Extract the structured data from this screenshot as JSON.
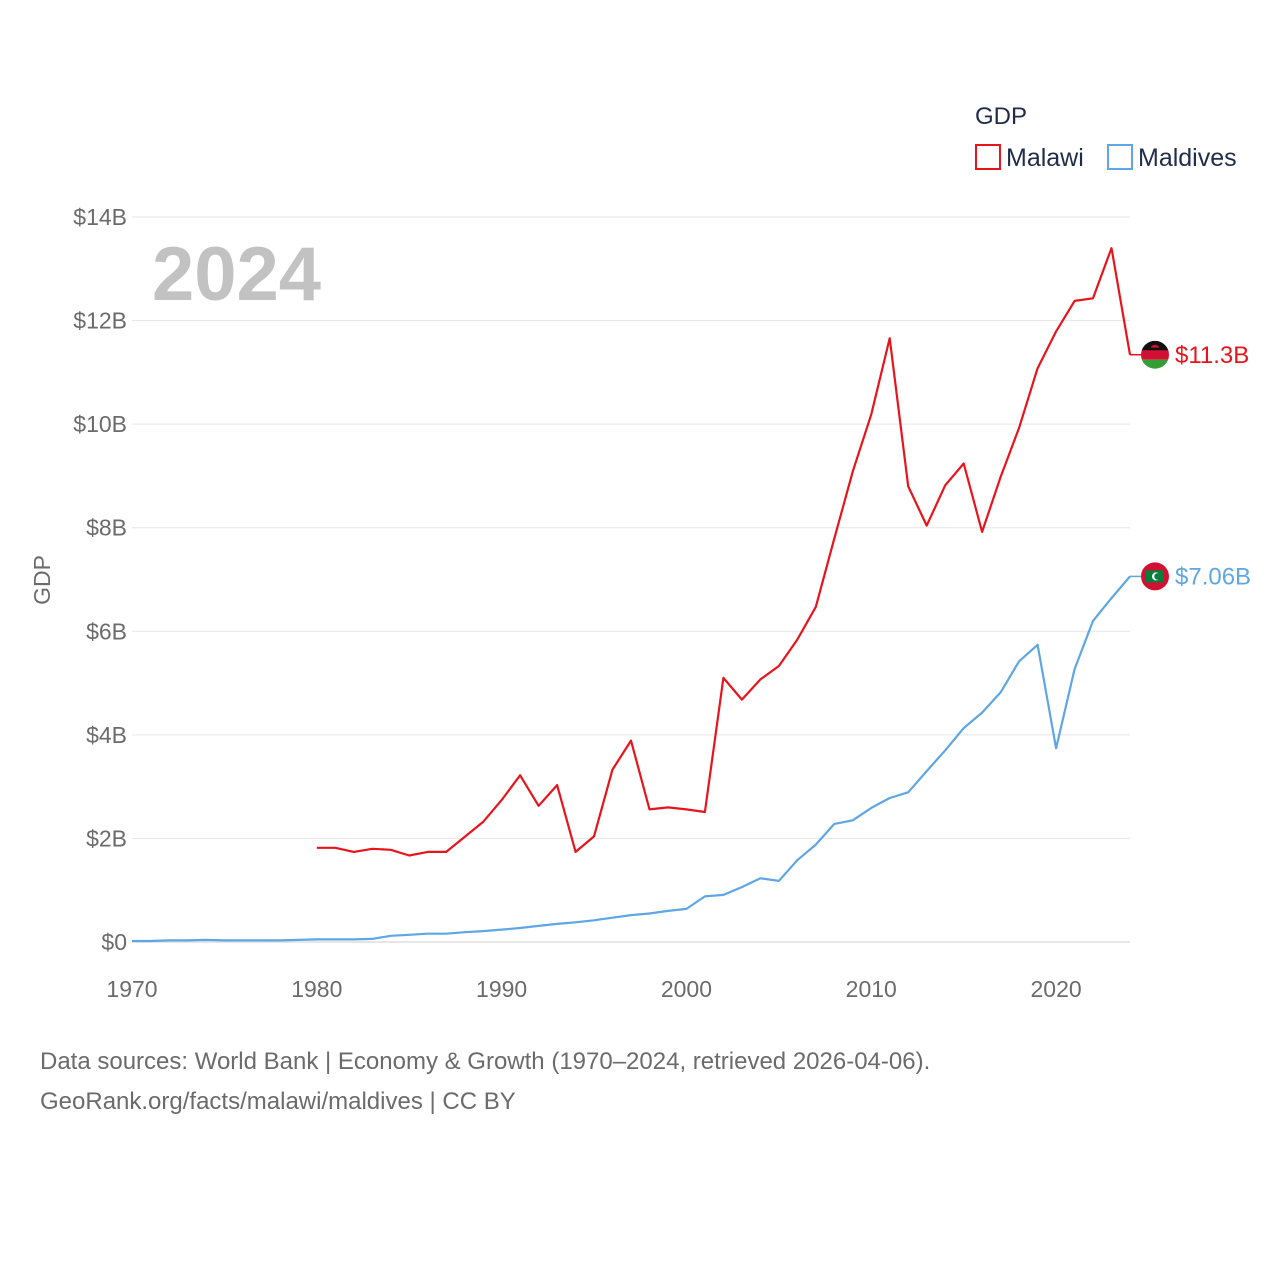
{
  "chart_data": {
    "type": "line",
    "title": "",
    "year_label": "2024",
    "xlabel": "",
    "ylabel": "GDP",
    "xlim": [
      1970,
      2024
    ],
    "ylim": [
      0,
      14000000000
    ],
    "x_ticks": [
      "1970",
      "1980",
      "1990",
      "2000",
      "2010",
      "2020"
    ],
    "y_ticks": [
      "$0",
      "$2B",
      "$4B",
      "$6B",
      "$8B",
      "$10B",
      "$12B",
      "$14B"
    ],
    "grid": true,
    "legend": {
      "title": "GDP",
      "position": "top-right",
      "entries": [
        "Malawi",
        "Maldives"
      ]
    },
    "series": [
      {
        "name": "Malawi",
        "color": "#e8141c",
        "end_label": "$11.3B",
        "flag": "malawi-flag-icon",
        "x": [
          1980,
          1981,
          1982,
          1983,
          1984,
          1985,
          1986,
          1987,
          1988,
          1989,
          1990,
          1991,
          1992,
          1993,
          1994,
          1995,
          1996,
          1997,
          1998,
          1999,
          2000,
          2001,
          2002,
          2003,
          2004,
          2005,
          2006,
          2007,
          2008,
          2009,
          2010,
          2011,
          2012,
          2013,
          2014,
          2015,
          2016,
          2017,
          2018,
          2019,
          2020,
          2021,
          2022,
          2023,
          2024
        ],
        "values": [
          1.82,
          1.82,
          1.74,
          1.8,
          1.78,
          1.67,
          1.74,
          1.74,
          2.03,
          2.32,
          2.74,
          3.22,
          2.63,
          3.03,
          1.74,
          2.04,
          3.33,
          3.89,
          2.56,
          2.6,
          2.56,
          2.51,
          5.1,
          4.68,
          5.07,
          5.33,
          5.84,
          6.47,
          7.79,
          9.09,
          10.19,
          11.66,
          8.8,
          8.04,
          8.82,
          9.24,
          7.92,
          8.98,
          9.93,
          11.08,
          11.79,
          12.38,
          12.43,
          13.4,
          11.34
        ]
      },
      {
        "name": "Maldives",
        "color": "#5ea6e4",
        "end_label": "$7.06B",
        "flag": "maldives-flag-icon",
        "x": [
          1970,
          1971,
          1972,
          1973,
          1974,
          1975,
          1976,
          1977,
          1978,
          1979,
          1980,
          1981,
          1982,
          1983,
          1984,
          1985,
          1986,
          1987,
          1988,
          1989,
          1990,
          1991,
          1992,
          1993,
          1994,
          1995,
          1996,
          1997,
          1998,
          1999,
          2000,
          2001,
          2002,
          2003,
          2004,
          2005,
          2006,
          2007,
          2008,
          2009,
          2010,
          2011,
          2012,
          2013,
          2014,
          2015,
          2016,
          2017,
          2018,
          2019,
          2020,
          2021,
          2022,
          2023,
          2024
        ],
        "values": [
          0.02,
          0.02,
          0.03,
          0.03,
          0.04,
          0.03,
          0.03,
          0.03,
          0.03,
          0.04,
          0.05,
          0.05,
          0.05,
          0.06,
          0.12,
          0.14,
          0.16,
          0.16,
          0.19,
          0.21,
          0.24,
          0.27,
          0.31,
          0.35,
          0.38,
          0.42,
          0.47,
          0.52,
          0.55,
          0.6,
          0.64,
          0.88,
          0.91,
          1.06,
          1.23,
          1.18,
          1.58,
          1.88,
          2.28,
          2.35,
          2.59,
          2.78,
          2.89,
          3.3,
          3.7,
          4.13,
          4.43,
          4.82,
          5.42,
          5.74,
          3.74,
          5.27,
          6.2,
          6.64,
          7.06
        ]
      }
    ]
  },
  "footer": {
    "line1": "Data sources: World Bank | Economy & Growth (1970–2024, retrieved 2026-04-06).",
    "line2": "GeoRank.org/facts/malawi/maldives | CC BY"
  }
}
